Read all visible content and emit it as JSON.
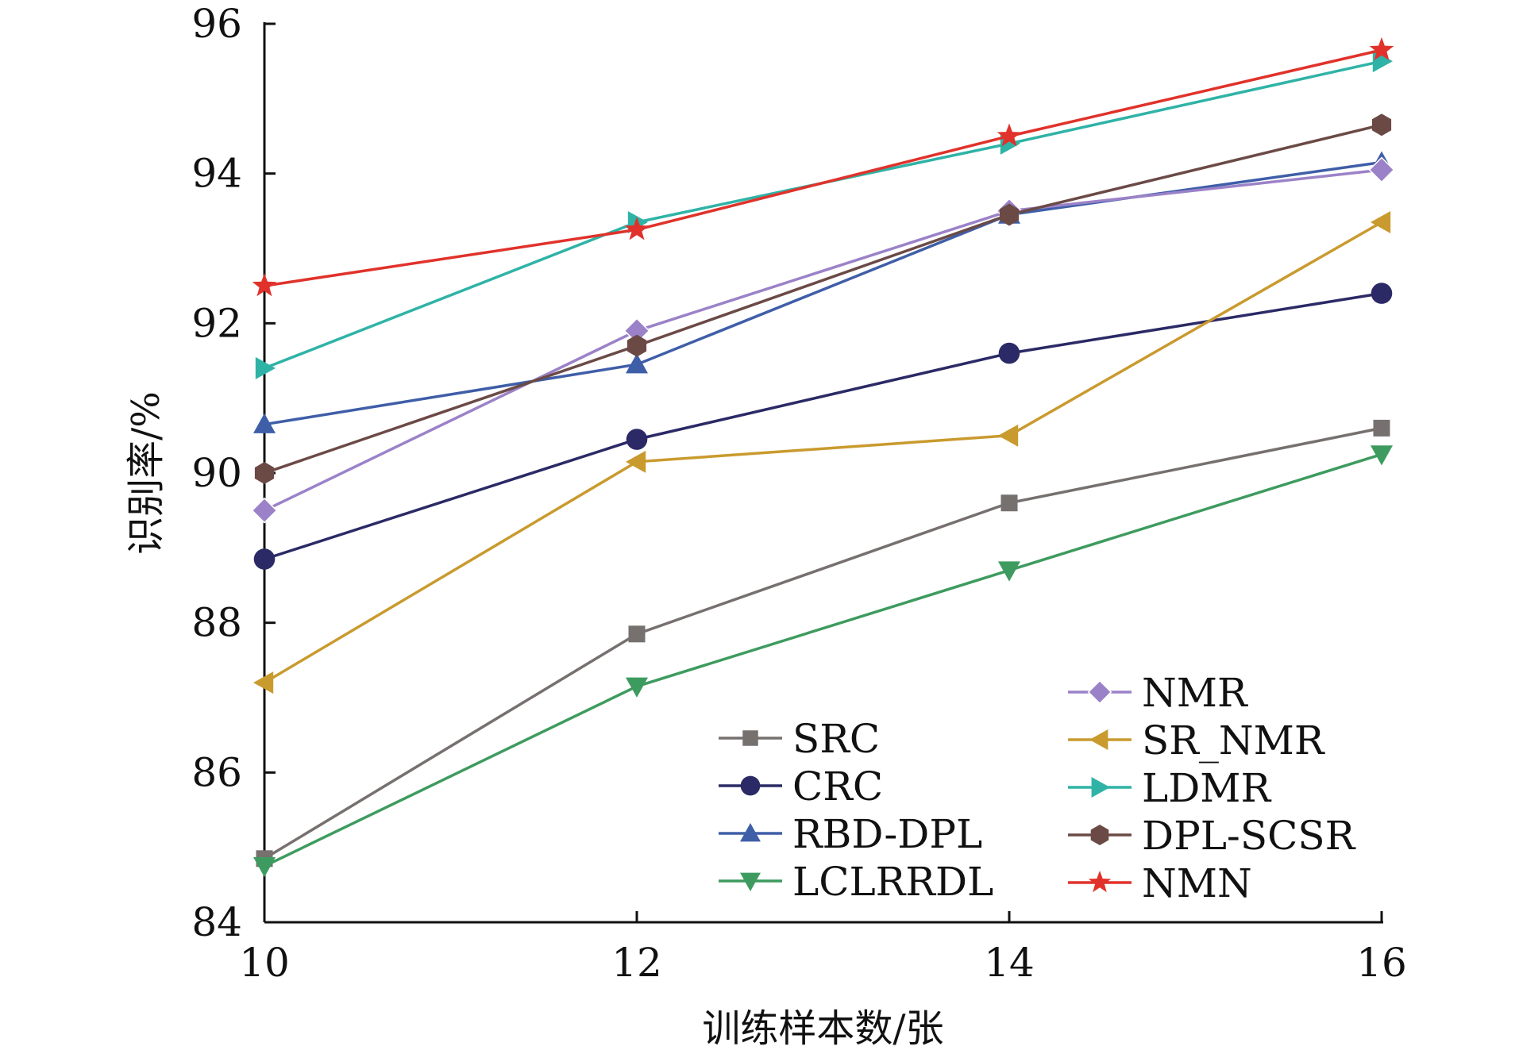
{
  "chart_data": {
    "type": "line",
    "xlabel": "训练样本数/张",
    "ylabel": "识别率/%",
    "x": [
      10,
      12,
      14,
      16
    ],
    "xlim": [
      10,
      16
    ],
    "ylim": [
      84,
      96
    ],
    "xticks": [
      "10",
      "12",
      "14",
      "16"
    ],
    "yticks": [
      "84",
      "86",
      "88",
      "90",
      "92",
      "94",
      "96"
    ],
    "grid": false,
    "legend_position": "bottom-right",
    "series": [
      {
        "name": "SRC",
        "values": [
          84.85,
          87.85,
          89.6,
          90.6
        ],
        "color": "#76706f",
        "marker": "square"
      },
      {
        "name": "CRC",
        "values": [
          88.85,
          90.45,
          91.6,
          92.4
        ],
        "color": "#2b2a66",
        "marker": "circle"
      },
      {
        "name": "RBD-DPL",
        "values": [
          90.65,
          91.45,
          93.45,
          94.15
        ],
        "color": "#3f5ea8",
        "marker": "triangle-up"
      },
      {
        "name": "LCLRRDL",
        "values": [
          84.75,
          87.15,
          88.7,
          90.25
        ],
        "color": "#3e9b5f",
        "marker": "triangle-down"
      },
      {
        "name": "NMR",
        "values": [
          89.5,
          91.9,
          93.5,
          94.05
        ],
        "color": "#9b82c8",
        "marker": "diamond"
      },
      {
        "name": "SR_NMR",
        "values": [
          87.2,
          90.15,
          90.5,
          93.35
        ],
        "color": "#c99a2e",
        "marker": "triangle-left"
      },
      {
        "name": "LDMR",
        "values": [
          91.4,
          93.35,
          94.4,
          95.5
        ],
        "color": "#2fb3a6",
        "marker": "triangle-right"
      },
      {
        "name": "DPL-SCSR",
        "values": [
          90.0,
          91.7,
          93.45,
          94.65
        ],
        "color": "#6b4a46",
        "marker": "hexagon"
      },
      {
        "name": "NMN",
        "values": [
          92.5,
          93.25,
          94.5,
          95.65
        ],
        "color": "#e0322b",
        "marker": "star"
      }
    ]
  }
}
